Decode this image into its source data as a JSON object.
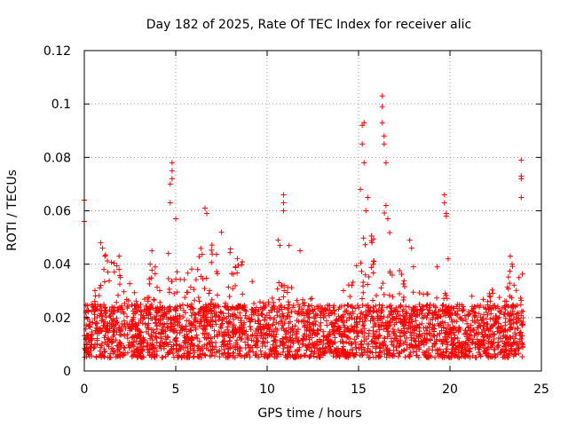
{
  "chart_data": {
    "type": "scatter",
    "title": "Day 182 of 2025, Rate Of TEC Index for receiver alic",
    "xlabel": "GPS time / hours",
    "ylabel": "ROTI / TECUs",
    "xlim": [
      0,
      25
    ],
    "ylim": [
      0,
      0.12
    ],
    "xticks": [
      "0",
      "5",
      "10",
      "15",
      "20",
      "25"
    ],
    "yticks": [
      "0",
      "0.02",
      "0.04",
      "0.06",
      "0.08",
      "0.1",
      "0.12"
    ],
    "grid": true,
    "marker": "+",
    "series": [
      {
        "name": "ROTI",
        "color": "#ff0000",
        "base_range": [
          0.005,
          0.025
        ],
        "time_range": [
          0,
          24
        ],
        "approx_points": 3000,
        "envelope_x": [
          0,
          0.5,
          1,
          2,
          3,
          4,
          4.5,
          5,
          5.5,
          6,
          6.5,
          7,
          7.5,
          8,
          8.5,
          9,
          10,
          11,
          11.5,
          12,
          13,
          14,
          15,
          15.5,
          16,
          16.5,
          17,
          18,
          19,
          19.5,
          20,
          21,
          22,
          23,
          23.5,
          24
        ],
        "envelope_y": [
          0.022,
          0.03,
          0.045,
          0.038,
          0.03,
          0.042,
          0.035,
          0.048,
          0.035,
          0.04,
          0.05,
          0.052,
          0.05,
          0.048,
          0.045,
          0.035,
          0.03,
          0.035,
          0.038,
          0.03,
          0.026,
          0.028,
          0.045,
          0.055,
          0.05,
          0.062,
          0.04,
          0.032,
          0.03,
          0.036,
          0.026,
          0.024,
          0.028,
          0.036,
          0.04,
          0.04
        ],
        "outliers": [
          [
            0.0,
            0.064
          ],
          [
            0.0,
            0.056
          ],
          [
            0.9,
            0.048
          ],
          [
            1.0,
            0.046
          ],
          [
            1.9,
            0.043
          ],
          [
            1.9,
            0.038
          ],
          [
            3.6,
            0.04
          ],
          [
            3.7,
            0.045
          ],
          [
            4.6,
            0.044
          ],
          [
            4.7,
            0.063
          ],
          [
            4.7,
            0.07
          ],
          [
            4.8,
            0.072
          ],
          [
            4.8,
            0.075
          ],
          [
            4.8,
            0.078
          ],
          [
            5.0,
            0.057
          ],
          [
            6.6,
            0.061
          ],
          [
            6.7,
            0.059
          ],
          [
            7.5,
            0.052
          ],
          [
            10.6,
            0.049
          ],
          [
            10.7,
            0.047
          ],
          [
            10.9,
            0.066
          ],
          [
            10.9,
            0.063
          ],
          [
            10.9,
            0.06
          ],
          [
            11.2,
            0.047
          ],
          [
            11.8,
            0.045
          ],
          [
            15.1,
            0.068
          ],
          [
            15.2,
            0.085
          ],
          [
            15.2,
            0.092
          ],
          [
            15.3,
            0.093
          ],
          [
            15.3,
            0.078
          ],
          [
            15.4,
            0.06
          ],
          [
            15.5,
            0.065
          ],
          [
            16.3,
            0.103
          ],
          [
            16.3,
            0.099
          ],
          [
            16.3,
            0.093
          ],
          [
            16.4,
            0.088
          ],
          [
            16.4,
            0.085
          ],
          [
            16.5,
            0.078
          ],
          [
            16.5,
            0.062
          ],
          [
            16.6,
            0.057
          ],
          [
            17.8,
            0.049
          ],
          [
            17.9,
            0.046
          ],
          [
            18.0,
            0.039
          ],
          [
            19.3,
            0.039
          ],
          [
            19.7,
            0.066
          ],
          [
            19.7,
            0.063
          ],
          [
            19.8,
            0.059
          ],
          [
            19.8,
            0.058
          ],
          [
            19.9,
            0.042
          ],
          [
            21.2,
            0.028
          ],
          [
            23.3,
            0.043
          ],
          [
            23.4,
            0.04
          ],
          [
            23.9,
            0.079
          ],
          [
            23.9,
            0.073
          ],
          [
            23.9,
            0.072
          ],
          [
            23.9,
            0.065
          ]
        ]
      }
    ]
  }
}
